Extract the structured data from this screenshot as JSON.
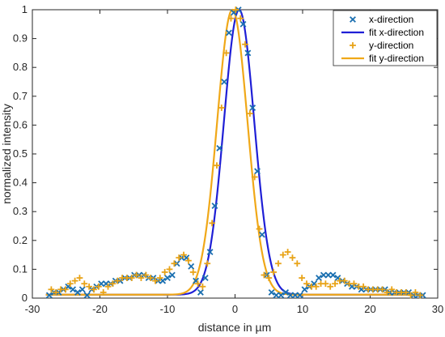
{
  "chart_data": {
    "type": "scatter",
    "title": "",
    "xlabel": "distance in µm",
    "ylabel": "normalized intensity",
    "xlim": [
      -30,
      30
    ],
    "ylim": [
      0,
      1
    ],
    "xticks": [
      -30,
      -20,
      -10,
      0,
      10,
      20,
      30
    ],
    "yticks": [
      0,
      0.1,
      0.2,
      0.3,
      0.4,
      0.5,
      0.6,
      0.7,
      0.8,
      0.9,
      1
    ],
    "grid": false,
    "legend_position": "top-right",
    "colors": {
      "x": "#1a6fb0",
      "fit_x": "#1f1fd6",
      "y": "#e8a317",
      "fit_y": "#f0a818"
    },
    "series": [
      {
        "name": "x-direction",
        "kind": "scatter",
        "marker": "x",
        "x": [
          -27.5,
          -26.8,
          -26.1,
          -25.4,
          -24.7,
          -24.0,
          -23.3,
          -22.6,
          -21.9,
          -21.2,
          -20.5,
          -19.8,
          -19.1,
          -18.4,
          -17.7,
          -17.0,
          -16.3,
          -15.6,
          -14.9,
          -14.2,
          -13.5,
          -12.8,
          -12.1,
          -11.4,
          -10.7,
          -10.0,
          -9.3,
          -8.6,
          -7.9,
          -7.2,
          -6.5,
          -5.8,
          -5.1,
          -4.4,
          -3.7,
          -3.0,
          -2.3,
          -1.6,
          -0.9,
          -0.2,
          0.5,
          1.2,
          1.9,
          2.6,
          3.3,
          4.0,
          4.7,
          5.4,
          6.1,
          6.8,
          7.5,
          8.2,
          8.9,
          9.6,
          10.3,
          11.0,
          11.7,
          12.4,
          13.1,
          13.8,
          14.5,
          15.2,
          15.9,
          16.6,
          17.3,
          18.0,
          18.7,
          19.4,
          20.1,
          20.8,
          21.5,
          22.2,
          22.9,
          23.6,
          24.3,
          25.0,
          25.7,
          26.4,
          27.1,
          27.8
        ],
        "y": [
          0.01,
          0.02,
          0.02,
          0.03,
          0.04,
          0.03,
          0.02,
          0.03,
          0.01,
          0.03,
          0.04,
          0.05,
          0.05,
          0.05,
          0.06,
          0.06,
          0.07,
          0.07,
          0.08,
          0.08,
          0.08,
          0.07,
          0.07,
          0.06,
          0.06,
          0.07,
          0.08,
          0.12,
          0.14,
          0.14,
          0.11,
          0.06,
          0.02,
          0.07,
          0.16,
          0.32,
          0.52,
          0.75,
          0.92,
          0.99,
          1.0,
          0.95,
          0.85,
          0.66,
          0.44,
          0.22,
          0.08,
          0.02,
          0.01,
          0.01,
          0.02,
          0.01,
          0.01,
          0.01,
          0.03,
          0.04,
          0.05,
          0.07,
          0.08,
          0.08,
          0.08,
          0.07,
          0.06,
          0.05,
          0.04,
          0.04,
          0.03,
          0.03,
          0.03,
          0.03,
          0.03,
          0.03,
          0.02,
          0.02,
          0.02,
          0.02,
          0.02,
          0.01,
          0.01,
          0.01
        ]
      },
      {
        "name": "fit x-direction",
        "kind": "line",
        "mu": 0.6,
        "sigma": 2.25,
        "baseline": 0.012
      },
      {
        "name": "y-direction",
        "kind": "scatter",
        "marker": "plus",
        "x": [
          -27.2,
          -26.5,
          -25.8,
          -25.1,
          -24.4,
          -23.7,
          -23.0,
          -22.3,
          -21.6,
          -20.9,
          -20.2,
          -19.5,
          -18.8,
          -18.1,
          -17.4,
          -16.7,
          -16.0,
          -15.3,
          -14.6,
          -13.9,
          -13.2,
          -12.5,
          -11.8,
          -11.1,
          -10.4,
          -9.7,
          -9.0,
          -8.3,
          -7.6,
          -6.9,
          -6.2,
          -5.5,
          -4.8,
          -4.1,
          -3.4,
          -2.7,
          -2.0,
          -1.3,
          -0.6,
          0.1,
          0.8,
          1.5,
          2.2,
          2.9,
          3.6,
          4.3,
          5.0,
          5.7,
          6.4,
          7.1,
          7.8,
          8.5,
          9.2,
          9.9,
          10.6,
          11.3,
          12.0,
          12.7,
          13.4,
          14.1,
          14.8,
          15.5,
          16.2,
          16.9,
          17.6,
          18.3,
          19.0,
          19.7,
          20.4,
          21.1,
          21.8,
          22.5,
          23.2,
          23.9,
          24.6,
          25.3,
          26.0,
          26.7,
          27.4
        ],
        "y": [
          0.03,
          0.02,
          0.03,
          0.03,
          0.05,
          0.06,
          0.07,
          0.05,
          0.04,
          0.03,
          0.04,
          0.02,
          0.04,
          0.05,
          0.06,
          0.07,
          0.07,
          0.07,
          0.08,
          0.07,
          0.08,
          0.07,
          0.06,
          0.07,
          0.09,
          0.1,
          0.12,
          0.14,
          0.15,
          0.13,
          0.09,
          0.05,
          0.04,
          0.12,
          0.26,
          0.46,
          0.66,
          0.85,
          0.97,
          1.0,
          0.97,
          0.88,
          0.64,
          0.42,
          0.24,
          0.08,
          0.07,
          0.09,
          0.12,
          0.15,
          0.16,
          0.14,
          0.12,
          0.07,
          0.05,
          0.04,
          0.04,
          0.05,
          0.05,
          0.04,
          0.05,
          0.06,
          0.06,
          0.05,
          0.05,
          0.04,
          0.04,
          0.03,
          0.03,
          0.03,
          0.03,
          0.02,
          0.03,
          0.02,
          0.02,
          0.02,
          0.01,
          0.02,
          0.01
        ]
      },
      {
        "name": "fit y-direction",
        "kind": "line",
        "mu": -0.4,
        "sigma": 2.25,
        "baseline": 0.012
      }
    ]
  }
}
